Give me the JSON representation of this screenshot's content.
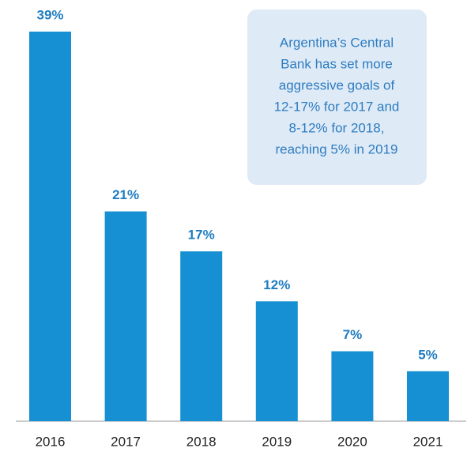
{
  "chart_data": {
    "type": "bar",
    "categories": [
      "2016",
      "2017",
      "2018",
      "2019",
      "2020",
      "2021"
    ],
    "values": [
      39,
      21,
      17,
      12,
      7,
      5
    ],
    "value_labels": [
      "39%",
      "21%",
      "17%",
      "12%",
      "7%",
      "5%"
    ],
    "color": "#1690d2",
    "annotation": [
      "Argentina’s Central",
      "Bank has set more",
      "aggressive goals of",
      "12-17% for 2017 and",
      "8-12% for 2018,",
      "reaching 5% in 2019"
    ]
  }
}
